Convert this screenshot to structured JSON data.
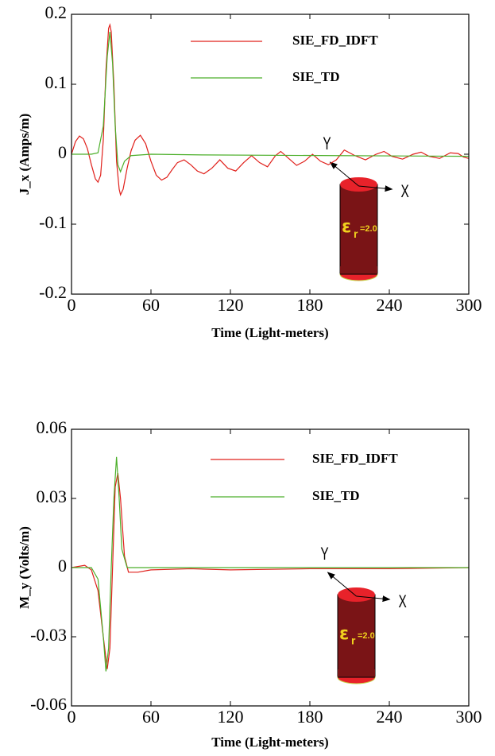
{
  "chart_data": [
    {
      "type": "line",
      "xlabel": "Time (Light-meters)",
      "ylabel": "J_x (Amps/m)",
      "xlim": [
        0,
        300
      ],
      "ylim": [
        -0.2,
        0.2
      ],
      "xticks": [
        0,
        60,
        120,
        180,
        240,
        300
      ],
      "yticks": [
        -0.2,
        -0.1,
        0,
        0.1,
        0.2
      ],
      "series": [
        {
          "name": "SIE_FD_IDFT",
          "color": "#e0201b",
          "x": [
            0,
            3,
            6,
            9,
            12,
            15,
            18,
            20,
            22,
            24,
            26,
            28,
            29,
            30,
            32,
            34,
            36,
            37,
            39,
            42,
            45,
            48,
            52,
            56,
            60,
            64,
            68,
            72,
            76,
            80,
            85,
            90,
            95,
            100,
            106,
            112,
            118,
            124,
            130,
            136,
            142,
            148,
            154,
            158,
            164,
            170,
            176,
            182,
            188,
            194,
            200,
            206,
            214,
            222,
            230,
            236,
            242,
            250,
            258,
            264,
            270,
            278,
            286,
            292,
            296,
            300
          ],
          "values": [
            0,
            0.018,
            0.026,
            0.022,
            0.008,
            -0.015,
            -0.035,
            -0.04,
            -0.03,
            0.02,
            0.12,
            0.18,
            0.185,
            0.175,
            0.1,
            -0.01,
            -0.05,
            -0.058,
            -0.05,
            -0.02,
            0.005,
            0.02,
            0.027,
            0.015,
            -0.01,
            -0.03,
            -0.037,
            -0.033,
            -0.022,
            -0.012,
            -0.008,
            -0.015,
            -0.024,
            -0.028,
            -0.02,
            -0.008,
            -0.02,
            -0.024,
            -0.012,
            -0.002,
            -0.012,
            -0.018,
            -0.002,
            0.004,
            -0.006,
            -0.016,
            -0.01,
            0,
            -0.01,
            -0.015,
            -0.008,
            0.006,
            -0.002,
            -0.008,
            0,
            0.004,
            -0.003,
            -0.007,
            0,
            0.003,
            -0.003,
            -0.006,
            0.002,
            0.001,
            -0.004,
            -0.006
          ]
        },
        {
          "name": "SIE_TD",
          "color": "#4caf2a",
          "x": [
            0,
            15,
            20,
            24,
            27,
            29,
            31,
            33,
            35,
            37,
            40,
            45,
            60,
            100,
            200,
            300
          ],
          "values": [
            0,
            0,
            0.002,
            0.04,
            0.14,
            0.175,
            0.13,
            0.04,
            -0.015,
            -0.025,
            -0.01,
            -0.002,
            0,
            -0.001,
            -0.002,
            -0.003
          ]
        }
      ],
      "inset": {
        "y_axis": "Y",
        "x_axis": "X",
        "symbol": "ε",
        "subscript": "r",
        "value": "=2.0"
      }
    },
    {
      "type": "line",
      "xlabel": "Time (Light-meters)",
      "ylabel": "M_y (Volts/m)",
      "xlim": [
        0,
        300
      ],
      "ylim": [
        -0.06,
        0.06
      ],
      "xticks": [
        0,
        60,
        120,
        180,
        240,
        300
      ],
      "yticks": [
        -0.06,
        -0.03,
        0,
        0.03,
        0.06
      ],
      "series": [
        {
          "name": "SIE_FD_IDFT",
          "color": "#e0201b",
          "x": [
            0,
            10,
            15,
            20,
            24,
            27,
            29,
            31,
            33,
            35,
            37,
            40,
            43,
            50,
            60,
            90,
            120,
            180,
            240,
            300
          ],
          "values": [
            0,
            0.001,
            -0.001,
            -0.01,
            -0.03,
            -0.044,
            -0.035,
            0,
            0.035,
            0.041,
            0.03,
            0.005,
            -0.002,
            -0.002,
            -0.001,
            -0.0005,
            -0.001,
            -0.0005,
            -0.0005,
            0
          ]
        },
        {
          "name": "SIE_TD",
          "color": "#4caf2a",
          "x": [
            0,
            15,
            20,
            24,
            26,
            28,
            30,
            32,
            34,
            36,
            38,
            42,
            60,
            300
          ],
          "values": [
            0,
            0,
            -0.005,
            -0.03,
            -0.045,
            -0.035,
            0,
            0.03,
            0.048,
            0.03,
            0.008,
            0,
            0,
            0
          ]
        }
      ],
      "inset": {
        "y_axis": "Y",
        "x_axis": "X",
        "symbol": "ε",
        "subscript": "r",
        "value": "=2.0"
      }
    }
  ]
}
